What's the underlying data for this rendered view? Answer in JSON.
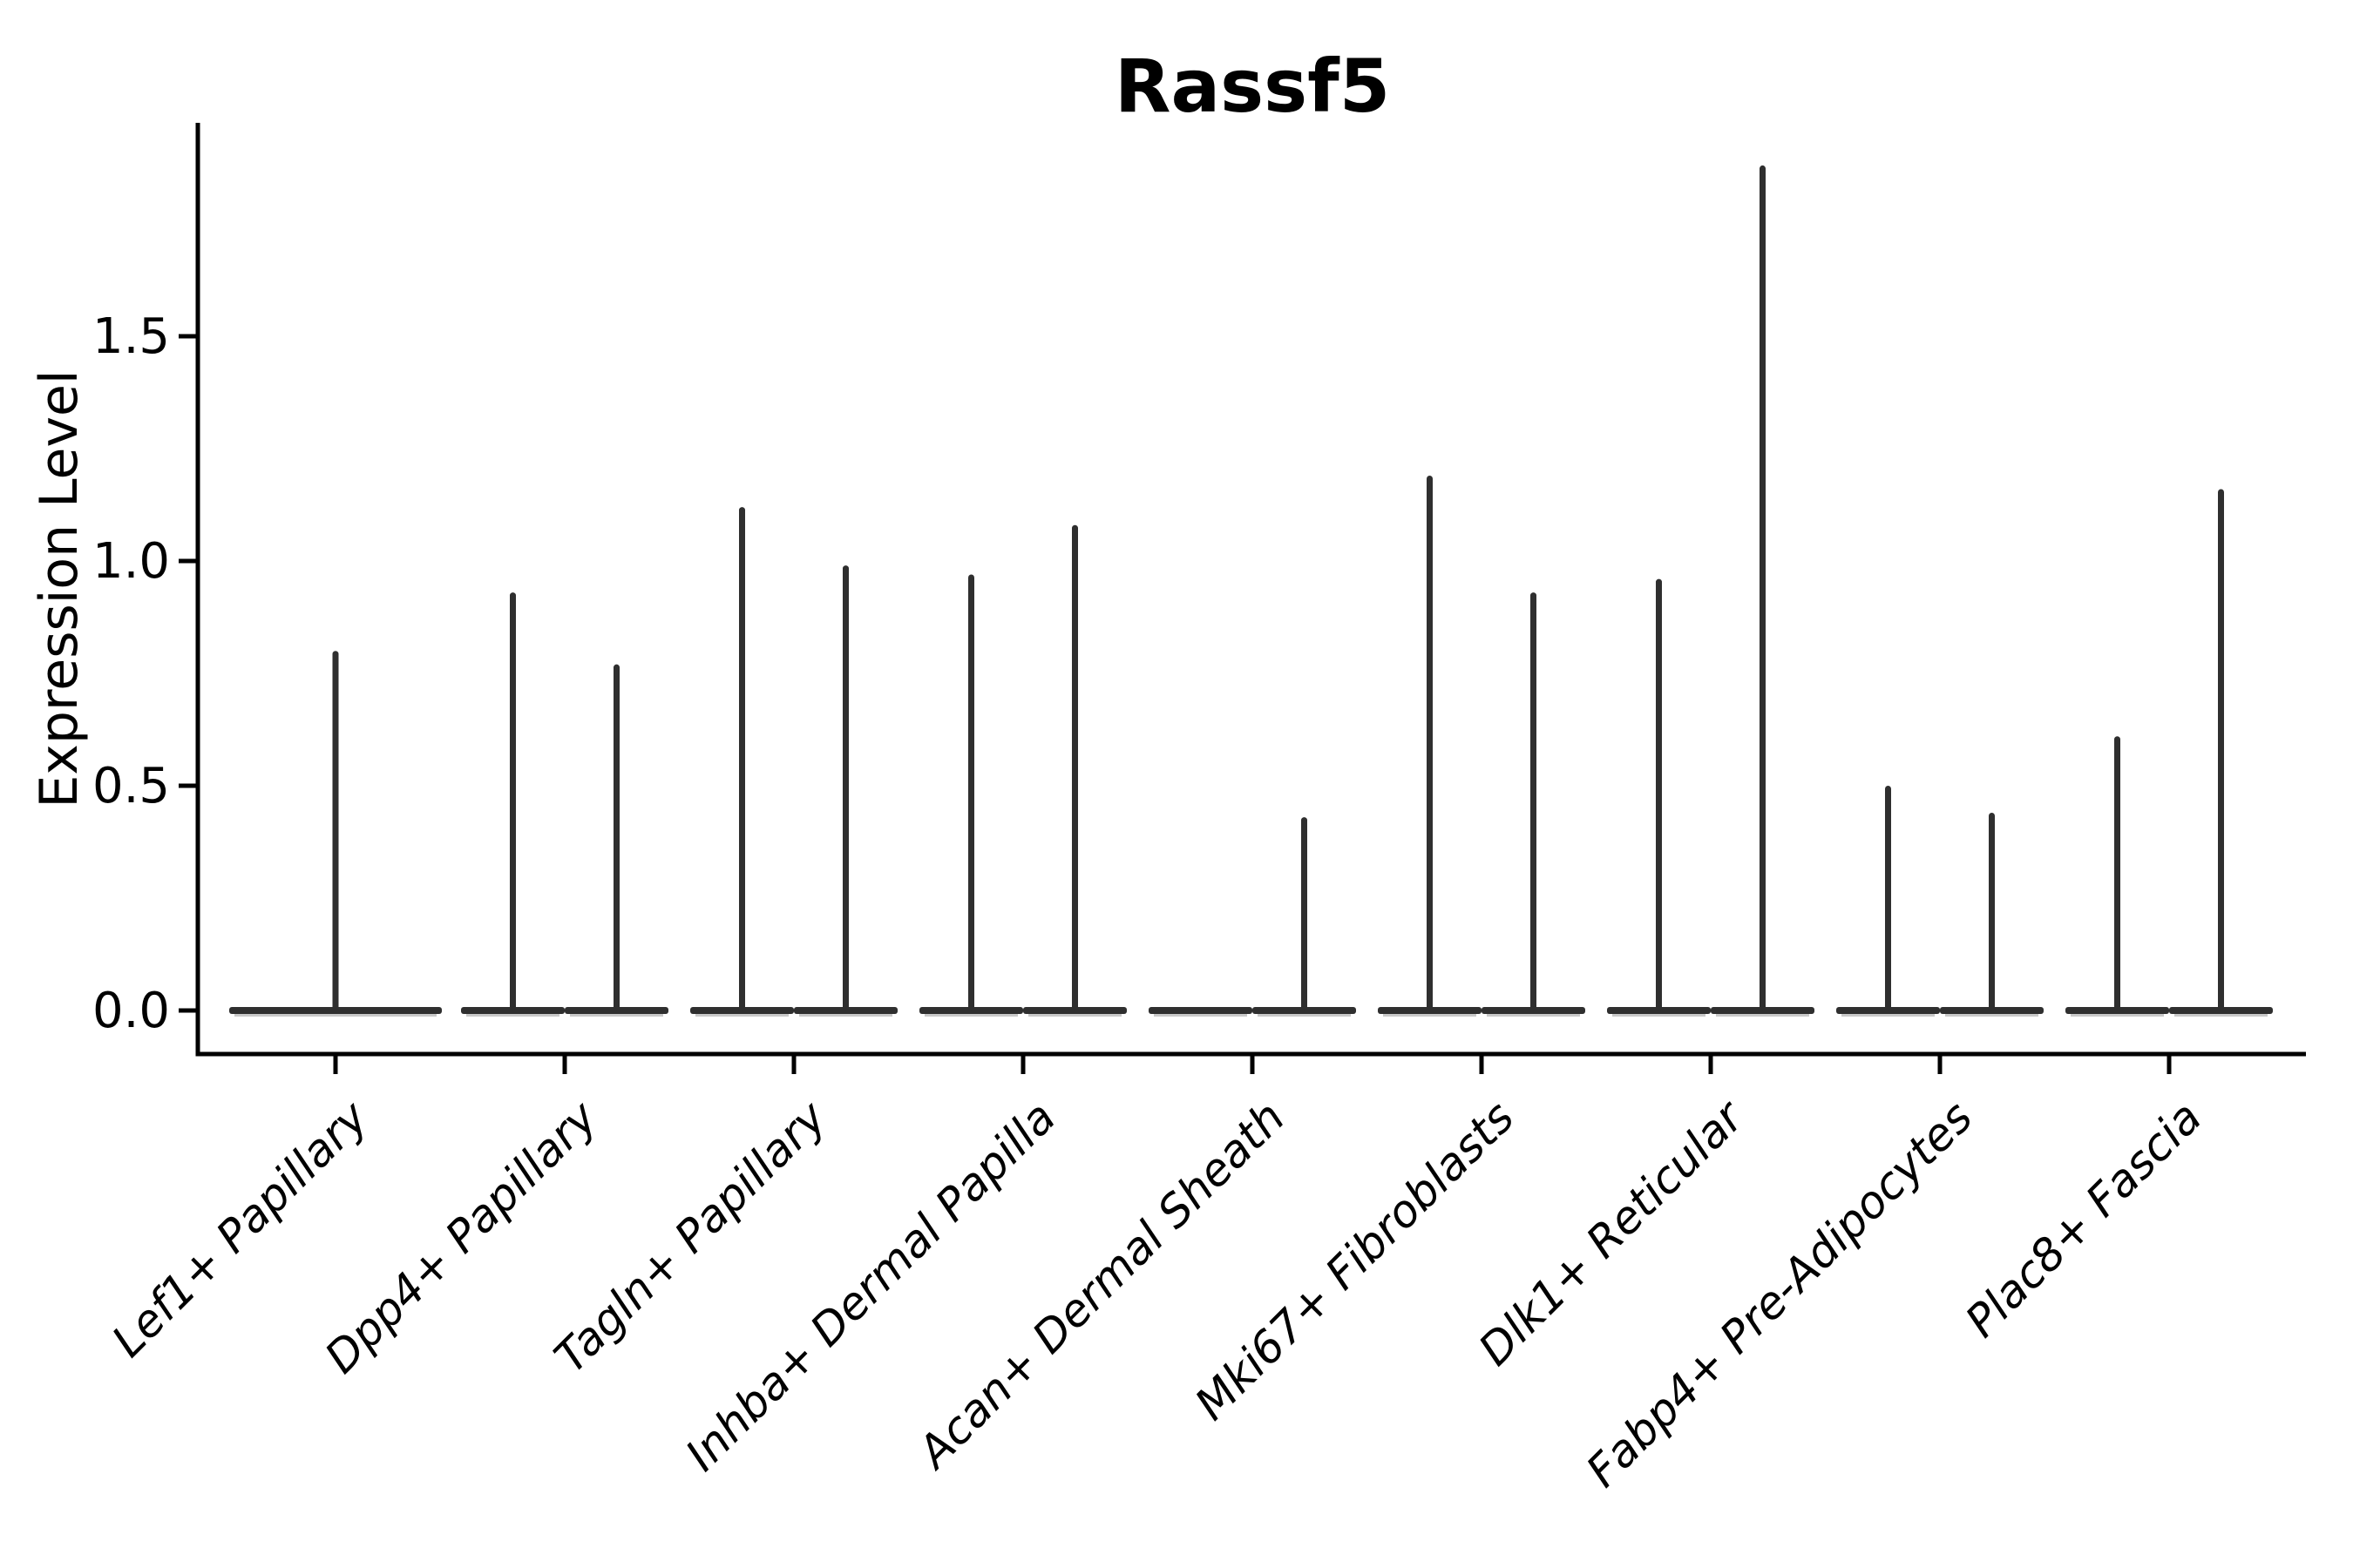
{
  "title": "Rassf5",
  "chart_data": {
    "type": "violin",
    "title": "Rassf5",
    "xlabel": "",
    "ylabel": "Expression Level",
    "yticks": [
      "0.0",
      "0.5",
      "1.0",
      "1.5"
    ],
    "ytick_values": [
      0.0,
      0.5,
      1.0,
      1.5
    ],
    "ylim": [
      -0.1,
      1.97
    ],
    "grid": false,
    "legend": "none",
    "violin_color": "#2f2f2f",
    "axis_color": "#000000",
    "categories": [
      "Lef1+ Papillary",
      "Dpp4+ Papillary",
      "Tagln+ Papillary",
      "Inhba+ Dermal Papilla",
      "Acan+ Dermal Sheath",
      "Mki67+ Fibroblasts",
      "Dlk1+ Reticular",
      "Fabp4+ Pre-Adipocytes",
      "Plac8+ Fascia"
    ],
    "violins": [
      {
        "category": "Lef1+ Papillary",
        "glyphs": [
          {
            "pos": "center",
            "max": 0.8
          }
        ]
      },
      {
        "category": "Dpp4+ Papillary",
        "glyphs": [
          {
            "pos": "left",
            "max": 0.93
          },
          {
            "pos": "right",
            "max": 0.77
          }
        ]
      },
      {
        "category": "Tagln+ Papillary",
        "glyphs": [
          {
            "pos": "left",
            "max": 1.12
          },
          {
            "pos": "right",
            "max": 0.99
          }
        ]
      },
      {
        "category": "Inhba+ Dermal Papilla",
        "glyphs": [
          {
            "pos": "left",
            "max": 0.97
          },
          {
            "pos": "right",
            "max": 1.08
          }
        ]
      },
      {
        "category": "Acan+ Dermal Sheath",
        "glyphs": [
          {
            "pos": "left",
            "max": 0.0
          },
          {
            "pos": "right",
            "max": 0.43
          }
        ]
      },
      {
        "category": "Mki67+ Fibroblasts",
        "glyphs": [
          {
            "pos": "left",
            "max": 1.19
          },
          {
            "pos": "right",
            "max": 0.93
          }
        ]
      },
      {
        "category": "Dlk1+ Reticular",
        "glyphs": [
          {
            "pos": "left",
            "max": 0.96
          },
          {
            "pos": "right",
            "max": 1.88
          }
        ]
      },
      {
        "category": "Fabp4+ Pre-Adipocytes",
        "glyphs": [
          {
            "pos": "left",
            "max": 0.5
          },
          {
            "pos": "right",
            "max": 0.44
          }
        ]
      },
      {
        "category": "Plac8+ Fascia",
        "glyphs": [
          {
            "pos": "left",
            "max": 0.61
          },
          {
            "pos": "right",
            "max": 1.16
          }
        ]
      }
    ]
  }
}
